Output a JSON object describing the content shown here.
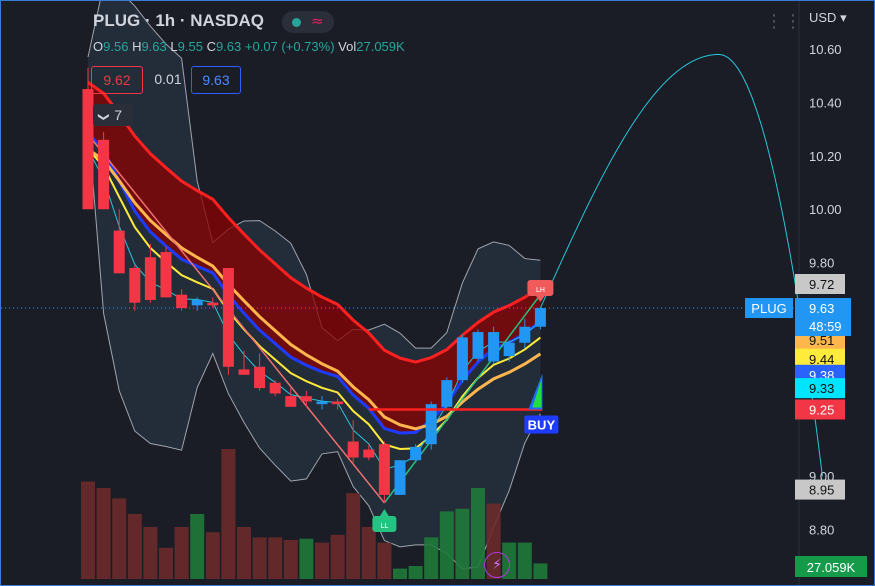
{
  "header": {
    "symbol": "PLUG",
    "interval": "1h",
    "exchange": "NASDAQ",
    "title": "PLUG · 1h · NASDAQ",
    "ohlc": {
      "o_label": "O",
      "o": "9.56",
      "h_label": "H",
      "h": "9.63",
      "l_label": "L",
      "l": "9.55",
      "c_label": "C",
      "c": "9.63",
      "change": "+0.07",
      "change_pct": "(+0.73%)",
      "vol_label": "Vol",
      "vol": "27.059K"
    },
    "status_icon": "market-open-dot-icon",
    "wave_icon": "wave-icon"
  },
  "trade_panel": {
    "sell_price": "9.62",
    "spread": "0.01",
    "buy_price": "9.63"
  },
  "layers": {
    "chevron": "❯",
    "count": "7"
  },
  "currency": "USD",
  "currency_chevron": "▾",
  "more_icon": "⋮⋮",
  "flash_icon": "⚡",
  "chart_data": {
    "type": "candlestick",
    "symbol": "PLUG",
    "ylim": [
      8.72,
      10.72
    ],
    "y_ticks": [
      "10.60",
      "10.40",
      "10.20",
      "10.00",
      "9.80",
      "9.00",
      "8.80"
    ],
    "candles": [
      {
        "o": 10.0,
        "h": 10.53,
        "l": 10.0,
        "c": 10.45,
        "up": false
      },
      {
        "o": 10.26,
        "h": 10.29,
        "l": 10.0,
        "c": 10.0,
        "up": false
      },
      {
        "o": 9.92,
        "h": 10.0,
        "l": 9.76,
        "c": 9.76,
        "up": false
      },
      {
        "o": 9.78,
        "h": 9.79,
        "l": 9.62,
        "c": 9.65,
        "up": false
      },
      {
        "o": 9.82,
        "h": 9.87,
        "l": 9.65,
        "c": 9.66,
        "up": false
      },
      {
        "o": 9.84,
        "h": 9.86,
        "l": 9.67,
        "c": 9.67,
        "up": false
      },
      {
        "o": 9.68,
        "h": 9.7,
        "l": 9.62,
        "c": 9.63,
        "up": false
      },
      {
        "o": 9.64,
        "h": 9.67,
        "l": 9.62,
        "c": 9.66,
        "up": true
      },
      {
        "o": 9.65,
        "h": 9.67,
        "l": 9.63,
        "c": 9.64,
        "up": false
      },
      {
        "o": 9.78,
        "h": 9.78,
        "l": 9.38,
        "c": 9.41,
        "up": false
      },
      {
        "o": 9.4,
        "h": 9.47,
        "l": 9.38,
        "c": 9.38,
        "up": false
      },
      {
        "o": 9.41,
        "h": 9.46,
        "l": 9.32,
        "c": 9.33,
        "up": false
      },
      {
        "o": 9.35,
        "h": 9.36,
        "l": 9.3,
        "c": 9.31,
        "up": false
      },
      {
        "o": 9.3,
        "h": 9.33,
        "l": 9.26,
        "c": 9.26,
        "up": false
      },
      {
        "o": 9.3,
        "h": 9.32,
        "l": 9.26,
        "c": 9.28,
        "up": false
      },
      {
        "o": 9.28,
        "h": 9.3,
        "l": 9.25,
        "c": 9.27,
        "up": true
      },
      {
        "o": 9.28,
        "h": 9.29,
        "l": 9.25,
        "c": 9.27,
        "up": false
      },
      {
        "o": 9.13,
        "h": 9.21,
        "l": 9.05,
        "c": 9.07,
        "up": false
      },
      {
        "o": 9.1,
        "h": 9.12,
        "l": 9.06,
        "c": 9.07,
        "up": false
      },
      {
        "o": 9.12,
        "h": 9.13,
        "l": 8.9,
        "c": 8.93,
        "up": false
      },
      {
        "o": 8.93,
        "h": 9.06,
        "l": 8.93,
        "c": 9.06,
        "up": true
      },
      {
        "o": 9.06,
        "h": 9.12,
        "l": 9.05,
        "c": 9.11,
        "up": true
      },
      {
        "o": 9.12,
        "h": 9.28,
        "l": 9.1,
        "c": 9.27,
        "up": true
      },
      {
        "o": 9.26,
        "h": 9.37,
        "l": 9.25,
        "c": 9.36,
        "up": true
      },
      {
        "o": 9.36,
        "h": 9.53,
        "l": 9.35,
        "c": 9.52,
        "up": true
      },
      {
        "o": 9.44,
        "h": 9.55,
        "l": 9.43,
        "c": 9.54,
        "up": true
      },
      {
        "o": 9.43,
        "h": 9.56,
        "l": 9.42,
        "c": 9.54,
        "up": true
      },
      {
        "o": 9.45,
        "h": 9.51,
        "l": 9.43,
        "c": 9.5,
        "up": true
      },
      {
        "o": 9.5,
        "h": 9.59,
        "l": 9.48,
        "c": 9.56,
        "up": true
      },
      {
        "o": 9.56,
        "h": 9.63,
        "l": 9.55,
        "c": 9.63,
        "up": true
      }
    ],
    "volume": [
      {
        "v": 0.75,
        "up": false
      },
      {
        "v": 0.7,
        "up": false
      },
      {
        "v": 0.62,
        "up": false
      },
      {
        "v": 0.5,
        "up": false
      },
      {
        "v": 0.4,
        "up": false
      },
      {
        "v": 0.24,
        "up": false
      },
      {
        "v": 0.4,
        "up": false
      },
      {
        "v": 0.5,
        "up": true
      },
      {
        "v": 0.36,
        "up": false
      },
      {
        "v": 1.0,
        "up": false
      },
      {
        "v": 0.4,
        "up": false
      },
      {
        "v": 0.32,
        "up": false
      },
      {
        "v": 0.32,
        "up": false
      },
      {
        "v": 0.3,
        "up": false
      },
      {
        "v": 0.31,
        "up": true
      },
      {
        "v": 0.28,
        "up": false
      },
      {
        "v": 0.34,
        "up": false
      },
      {
        "v": 0.66,
        "up": false
      },
      {
        "v": 0.4,
        "up": false
      },
      {
        "v": 0.28,
        "up": false
      },
      {
        "v": 0.08,
        "up": true
      },
      {
        "v": 0.1,
        "up": true
      },
      {
        "v": 0.32,
        "up": true
      },
      {
        "v": 0.52,
        "up": true
      },
      {
        "v": 0.54,
        "up": true
      },
      {
        "v": 0.7,
        "up": true
      },
      {
        "v": 0.58,
        "up": false
      },
      {
        "v": 0.28,
        "up": true
      },
      {
        "v": 0.28,
        "up": true
      },
      {
        "v": 0.12,
        "up": true
      }
    ],
    "markers": [
      {
        "index": 19,
        "label": "LL",
        "color": "#26c281",
        "position": "below"
      },
      {
        "index": 29,
        "label": "LH",
        "color": "#f05a5a",
        "position": "above"
      }
    ],
    "buy_signal": {
      "label": "BUY",
      "price": 9.25
    },
    "right_labels": [
      {
        "text": "9.72",
        "bg": "#c8c8c8",
        "fg": "#111"
      },
      {
        "text": "9.51",
        "bg": "#ffb74d",
        "fg": "#111"
      },
      {
        "text": "9.44",
        "bg": "#ffeb3b",
        "fg": "#111"
      },
      {
        "text": "9.38",
        "bg": "#2962ff",
        "fg": "#fff"
      },
      {
        "text": "9.33",
        "bg": "#00e5ff",
        "fg": "#111"
      },
      {
        "text": "9.25",
        "bg": "#f23645",
        "fg": "#fff"
      },
      {
        "text": "8.95",
        "bg": "#c8c8c8",
        "fg": "#111"
      }
    ],
    "price_label": {
      "symbol": "PLUG",
      "price": "9.63",
      "countdown": "48:59",
      "bg": "#2196f3"
    },
    "volume_label": {
      "text": "27.059K",
      "bg": "#159a4a"
    },
    "last_price": 9.63
  }
}
